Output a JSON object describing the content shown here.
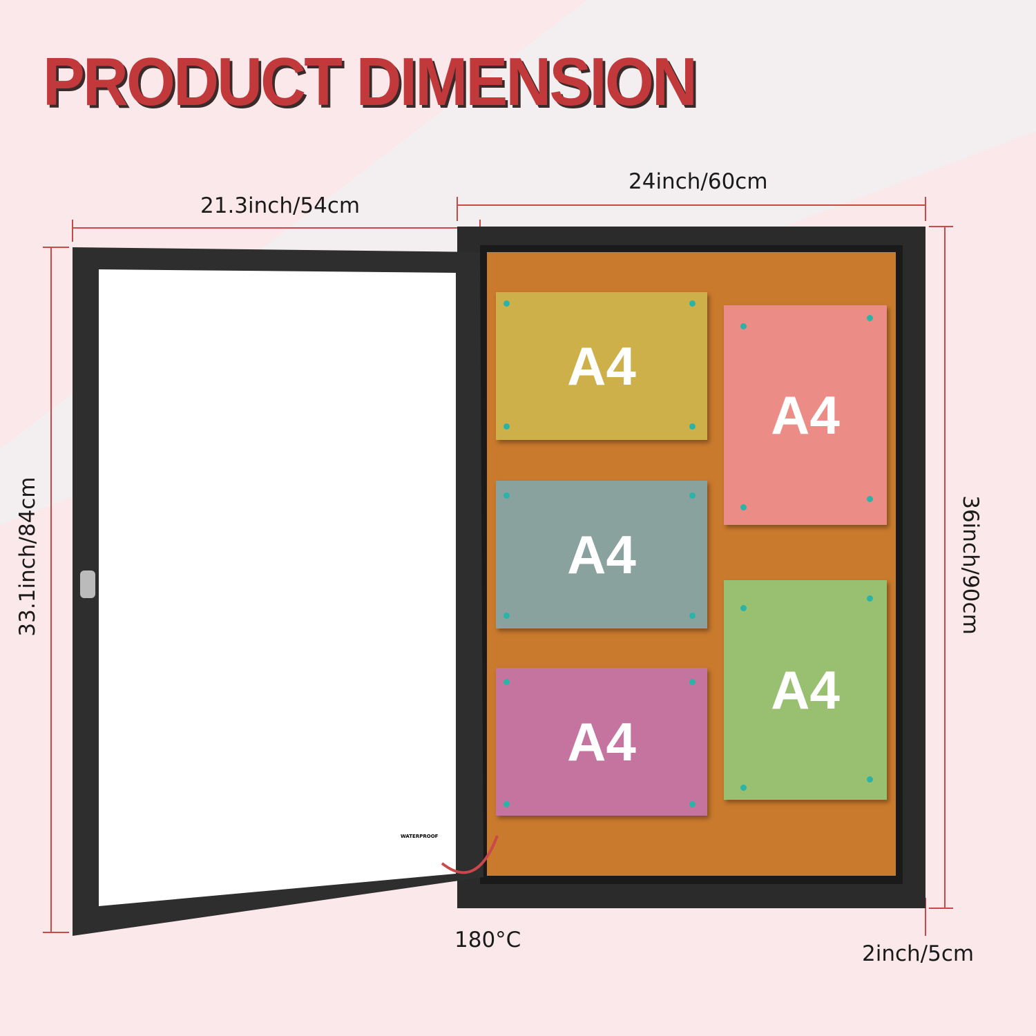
{
  "title": "PRODUCT DIMENSION",
  "dimensions": {
    "door_width": "21.3inch/54cm",
    "board_width": "24inch/60cm",
    "door_height": "33.1inch/84cm",
    "board_height": "36inch/90cm",
    "depth": "2inch/5cm",
    "opening_angle": "180°C"
  },
  "badge": {
    "label": "WATERPROOF",
    "icon": "water-splash-icon"
  },
  "papers": [
    {
      "label": "A4",
      "color": "#cdb04a"
    },
    {
      "label": "A4",
      "color": "#ec8c87"
    },
    {
      "label": "A4",
      "color": "#8aa29e"
    },
    {
      "label": "A4",
      "color": "#98c070"
    },
    {
      "label": "A4",
      "color": "#c574a0"
    }
  ],
  "colors": {
    "accent": "#c2393b",
    "dimension_line": "#c9494b",
    "cork": "#c97a2d",
    "frame": "#2b2b2b",
    "background": "#fbe8ea"
  }
}
